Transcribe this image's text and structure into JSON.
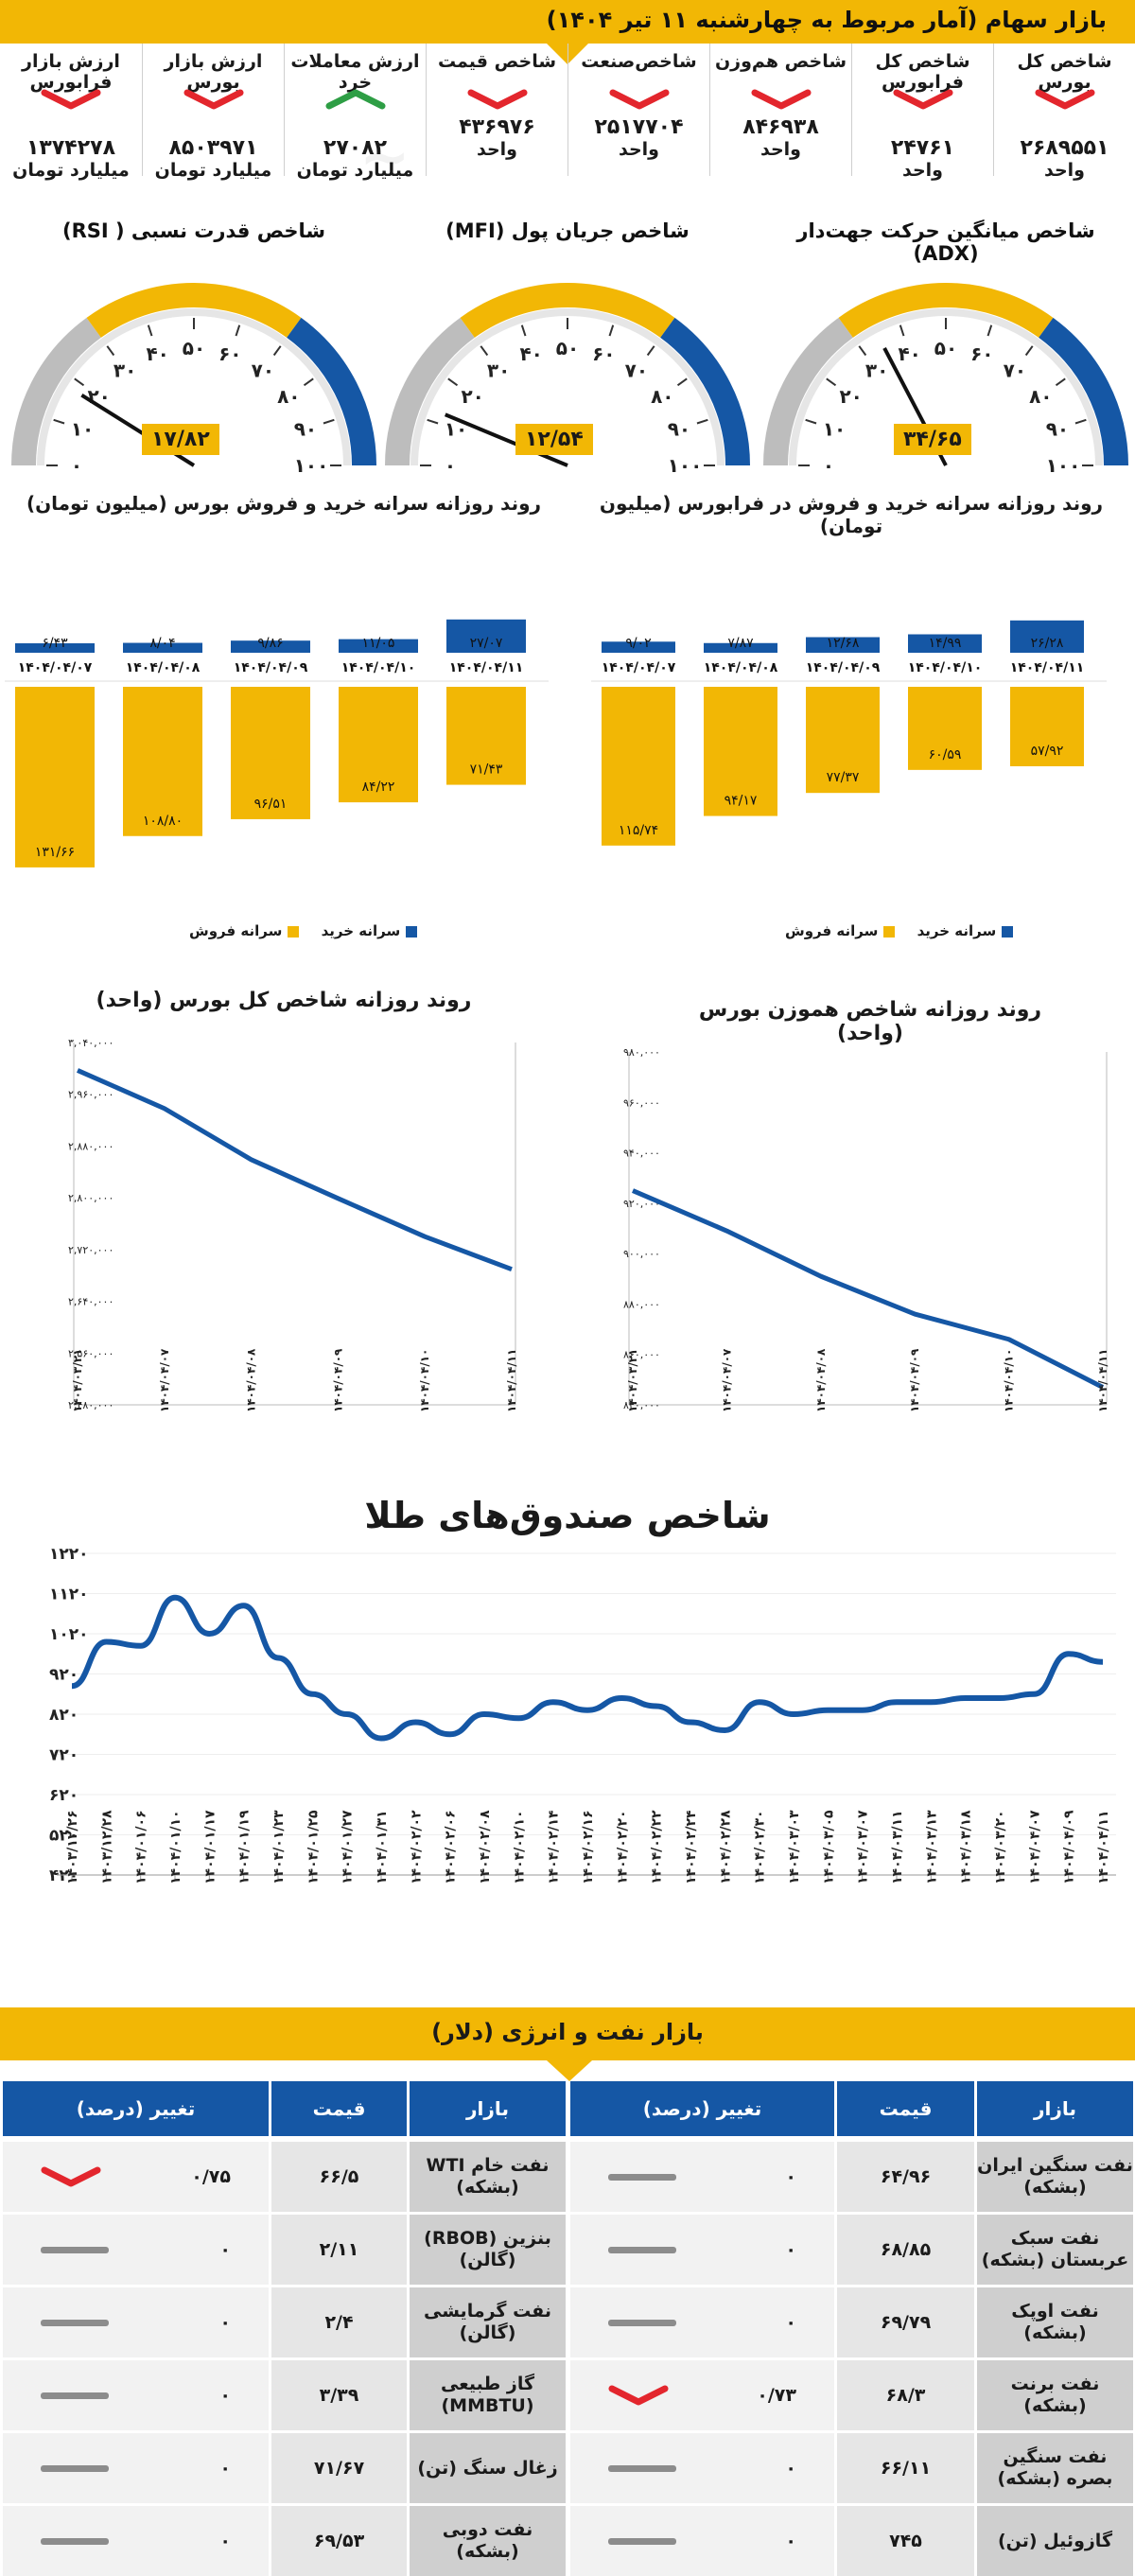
{
  "header": {
    "title": "بازار سهام (آمار مربوط به چهارشنبه ۱۱ تیر ۱۴۰۴)",
    "stats": [
      {
        "label": "شاخص کل بورس",
        "value": "۲۶۸۹۵۵۱",
        "unit": "واحد",
        "trend": "down"
      },
      {
        "label": "شاخص کل فرابورس",
        "value": "۲۴۷۶۱",
        "unit": "واحد",
        "trend": "down"
      },
      {
        "label": "شاخص هم‌وزن",
        "value": "۸۴۶۹۳۸",
        "unit": "واحد",
        "trend": "down"
      },
      {
        "label": "شاخص‌صنعت",
        "value": "۲۵۱۷۷۰۴",
        "unit": "واحد",
        "trend": "down"
      },
      {
        "label": "شاخص قیمت",
        "value": "۴۳۶۹۷۶",
        "unit": "واحد",
        "trend": "down"
      },
      {
        "label": "ارزش معاملات خرد",
        "value": "۲۷۰۸۲",
        "unit": "میلیارد تومان",
        "trend": "up"
      },
      {
        "label": "ارزش بازار بورس",
        "value": "۸۵۰۳۹۷۱",
        "unit": "میلیارد تومان",
        "trend": "down"
      },
      {
        "label": "ارزش بازار فرابورس",
        "value": "۱۳۷۴۲۷۸",
        "unit": "میلیارد تومان",
        "trend": "down"
      }
    ]
  },
  "colors": {
    "accent": "#f2b705",
    "blue": "#1557a5",
    "grey": "#bdbdbd",
    "red": "#e3262d",
    "green": "#2e9e45",
    "line": "#1557a5"
  },
  "gauges": [
    {
      "title": "شاخص میانگین حرکت جهت‌دار (ADX)",
      "value": 34.65,
      "value_label": "۳۴/۶۵"
    },
    {
      "title": "شاخص جریان پول (MFI)",
      "value": 12.54,
      "value_label": "۱۲/۵۴"
    },
    {
      "title": "شاخص قدرت نسبی ( RSI)",
      "value": 17.82,
      "value_label": "۱۷/۸۲"
    }
  ],
  "gauge_ticks": [
    "۰",
    "۱۰",
    "۲۰",
    "۳۰",
    "۴۰",
    "۵۰",
    "۶۰",
    "۷۰",
    "۸۰",
    "۹۰",
    "۱۰۰"
  ],
  "flows": {
    "left_title": "روند روزانه سرانه خرید و فروش بورس (میلیون تومان)",
    "right_title": "روند روزانه سرانه خرید و فروش در فرابورس (میلیون تومان)",
    "legend_buy": "سرانه خرید",
    "legend_sell": "سرانه فروش"
  },
  "lines": {
    "left_title": "روند روزانه شاخص کل بورس (واحد)",
    "right_title": "روند روزانه شاخص هموزن بورس (واحد)"
  },
  "gold_title": "شاخص صندوق‌های طلا",
  "chart_data": [
    {
      "type": "bar",
      "title": "روند روزانه سرانه خرید و فروش بورس (میلیون تومان)",
      "categories": [
        "۱۴۰۴/۰۴/۰۷",
        "۱۴۰۴/۰۴/۰۸",
        "۱۴۰۴/۰۴/۰۹",
        "۱۴۰۴/۰۴/۱۰",
        "۱۴۰۴/۰۴/۱۱"
      ],
      "series": [
        {
          "name": "سرانه خرید",
          "values": [
            6.43,
            8.04,
            9.86,
            11.05,
            27.07
          ],
          "labels": [
            "۶/۴۳",
            "۸/۰۴",
            "۹/۸۶",
            "۱۱/۰۵",
            "۲۷/۰۷"
          ]
        },
        {
          "name": "سرانه فروش",
          "values": [
            131.66,
            108.8,
            96.51,
            84.22,
            71.43
          ],
          "labels": [
            "۱۳۱/۶۶",
            "۱۰۸/۸۰",
            "۹۶/۵۱",
            "۸۴/۲۲",
            "۷۱/۴۳"
          ]
        }
      ]
    },
    {
      "type": "bar",
      "title": "روند روزانه سرانه خرید و فروش در فرابورس (میلیون تومان)",
      "categories": [
        "۱۴۰۴/۰۴/۰۷",
        "۱۴۰۴/۰۴/۰۸",
        "۱۴۰۴/۰۴/۰۹",
        "۱۴۰۴/۰۴/۱۰",
        "۱۴۰۴/۰۴/۱۱"
      ],
      "series": [
        {
          "name": "سرانه خرید",
          "values": [
            9.02,
            7.87,
            12.68,
            14.99,
            26.28
          ],
          "labels": [
            "۹/۰۲",
            "۷/۸۷",
            "۱۲/۶۸",
            "۱۴/۹۹",
            "۲۶/۲۸"
          ]
        },
        {
          "name": "سرانه فروش",
          "values": [
            115.74,
            94.17,
            77.37,
            60.59,
            57.92
          ],
          "labels": [
            "۱۱۵/۷۴",
            "۹۴/۱۷",
            "۷۷/۳۷",
            "۶۰/۵۹",
            "۵۷/۹۲"
          ]
        }
      ]
    },
    {
      "type": "line",
      "title": "روند روزانه شاخص کل بورس (واحد)",
      "x": [
        "۱۴۰۴/۰۳/۲۱",
        "۱۴۰۴/۰۴/۰۷",
        "۱۴۰۴/۰۴/۰۸",
        "۱۴۰۴/۰۴/۰۹",
        "۱۴۰۴/۰۴/۱۰",
        "۱۴۰۴/۰۴/۱۱"
      ],
      "values": [
        2997000,
        2938000,
        2859000,
        2799000,
        2740000,
        2689551
      ],
      "ylim": [
        2480000,
        3040000
      ],
      "yticks": [
        "۳,۰۴۰,۰۰۰",
        "۲,۹۶۰,۰۰۰",
        "۲,۸۸۰,۰۰۰",
        "۲,۸۰۰,۰۰۰",
        "۲,۷۲۰,۰۰۰",
        "۲,۶۴۰,۰۰۰",
        "۲,۵۶۰,۰۰۰",
        "۲,۴۸۰,۰۰۰"
      ]
    },
    {
      "type": "line",
      "title": "روند روزانه شاخص هموزن بورس (واحد)",
      "x": [
        "۱۴۰۴/۰۳/۲۱",
        "۱۴۰۴/۰۴/۰۷",
        "۱۴۰۴/۰۴/۰۸",
        "۱۴۰۴/۰۴/۰۹",
        "۱۴۰۴/۰۴/۱۰",
        "۱۴۰۴/۰۴/۱۱"
      ],
      "values": [
        925000,
        909000,
        891000,
        876000,
        866000,
        846938
      ],
      "ylim": [
        840000,
        980000
      ],
      "yticks": [
        "۹۸۰,۰۰۰",
        "۹۶۰,۰۰۰",
        "۹۴۰,۰۰۰",
        "۹۲۰,۰۰۰",
        "۹۰۰,۰۰۰",
        "۸۸۰,۰۰۰",
        "۸۶۰,۰۰۰",
        "۸۴۰,۰۰۰"
      ]
    },
    {
      "type": "line",
      "title": "شاخص صندوق‌های طلا",
      "x": [
        "۱۴۰۳/۱۲/۲۶",
        "۱۴۰۳/۱۲/۲۸",
        "۱۴۰۴/۰۱/۰۶",
        "۱۴۰۴/۰۱/۱۰",
        "۱۴۰۴/۰۱/۱۷",
        "۱۴۰۴/۰۱/۱۹",
        "۱۴۰۴/۰۱/۲۳",
        "۱۴۰۴/۰۱/۲۵",
        "۱۴۰۴/۰۱/۲۷",
        "۱۴۰۴/۰۱/۳۱",
        "۱۴۰۴/۰۲/۰۲",
        "۱۴۰۴/۰۲/۰۶",
        "۱۴۰۴/۰۲/۰۸",
        "۱۴۰۴/۰۲/۱۰",
        "۱۴۰۴/۰۲/۱۴",
        "۱۴۰۴/۰۲/۱۶",
        "۱۴۰۴/۰۲/۲۰",
        "۱۴۰۴/۰۲/۲۲",
        "۱۴۰۴/۰۲/۲۴",
        "۱۴۰۴/۰۲/۲۸",
        "۱۴۰۴/۰۲/۳۰",
        "۱۴۰۴/۰۳/۰۳",
        "۱۴۰۴/۰۳/۰۵",
        "۱۴۰۴/۰۳/۰۷",
        "۱۴۰۴/۰۳/۱۱",
        "۱۴۰۴/۰۳/۱۳",
        "۱۴۰۴/۰۳/۱۸",
        "۱۴۰۴/۰۳/۲۰",
        "۱۴۰۴/۰۴/۰۷",
        "۱۴۰۴/۰۴/۰۹",
        "۱۴۰۴/۰۴/۱۱"
      ],
      "values": [
        890,
        1000,
        990,
        1110,
        1020,
        1090,
        960,
        870,
        820,
        760,
        800,
        770,
        820,
        810,
        850,
        830,
        860,
        840,
        800,
        780,
        850,
        820,
        830,
        830,
        850,
        850,
        860,
        860,
        870,
        970,
        950
      ],
      "ylim": [
        420,
        1220
      ],
      "yticks": [
        "۱۲۲۰",
        "۱۱۲۰",
        "۱۰۲۰",
        "۹۲۰",
        "۸۲۰",
        "۷۲۰",
        "۶۲۰",
        "۵۲۰",
        "۴۲۰"
      ]
    }
  ],
  "oil": {
    "title": "بازار نفت و انرژی (دلار)",
    "headers": {
      "market": "بازار",
      "price": "قیمت",
      "change": "تغییر (درصد)"
    },
    "right_rows": [
      {
        "name": "نفت سنگین ایران (بشکه)",
        "price": "۶۴/۹۶",
        "change": "۰",
        "trend": "flat"
      },
      {
        "name": "نفت سبک عربستان (بشکه)",
        "price": "۶۸/۸۵",
        "change": "۰",
        "trend": "flat"
      },
      {
        "name": "نفت اوپک (بشکه)",
        "price": "۶۹/۷۹",
        "change": "۰",
        "trend": "flat"
      },
      {
        "name": "نفت برنت (بشکه)",
        "price": "۶۸/۳",
        "change": "۰/۷۳",
        "trend": "down"
      },
      {
        "name": "نفت سنگین بصره (بشکه)",
        "price": "۶۶/۱۱",
        "change": "۰",
        "trend": "flat"
      },
      {
        "name": "گازوئیل (تن)",
        "price": "۷۴۵",
        "change": "۰",
        "trend": "flat"
      }
    ],
    "left_rows": [
      {
        "name": "نفت خام WTI (بشکه)",
        "price": "۶۶/۵",
        "change": "۰/۷۵",
        "trend": "down"
      },
      {
        "name": "بنزین (RBOB) (گالن)",
        "price": "۲/۱۱",
        "change": "۰",
        "trend": "flat"
      },
      {
        "name": "نفت گرمایشی (گالن)",
        "price": "۲/۴",
        "change": "۰",
        "trend": "flat"
      },
      {
        "name": "گاز طبیعی (MMBTU)",
        "price": "۳/۳۹",
        "change": "۰",
        "trend": "flat"
      },
      {
        "name": "زغال سنگ (تن)",
        "price": "۷۱/۶۷",
        "change": "۰",
        "trend": "flat"
      },
      {
        "name": "نفت دوبی (بشکه)",
        "price": "۶۹/۵۳",
        "change": "۰",
        "trend": "flat"
      }
    ]
  }
}
